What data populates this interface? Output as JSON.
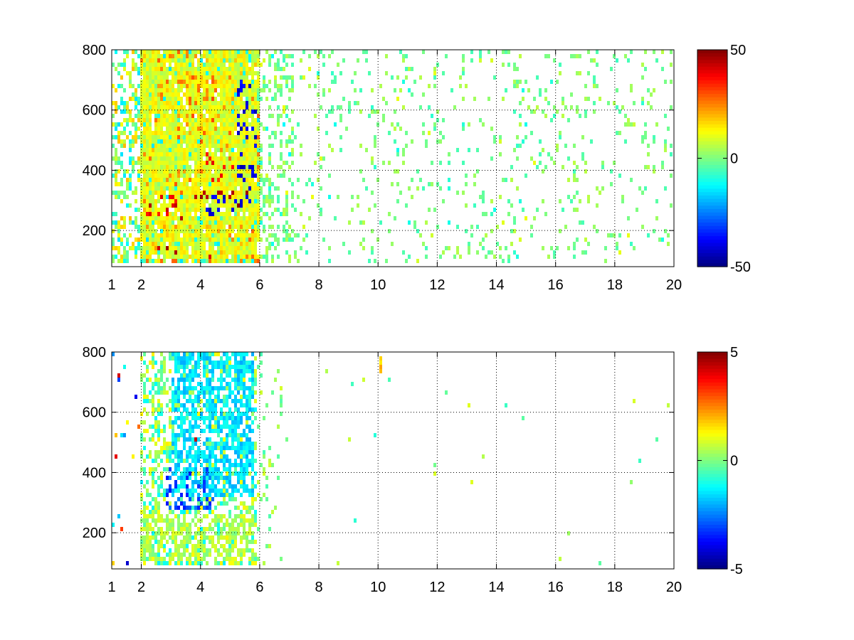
{
  "chart_data": [
    {
      "type": "heatmap",
      "title": "",
      "xlabel": "",
      "ylabel": "",
      "grid": true,
      "colormap": "jet",
      "xlim": [
        1,
        20
      ],
      "ylim": [
        80,
        800
      ],
      "xticks": [
        "1",
        "2",
        "4",
        "6",
        "8",
        "10",
        "12",
        "14",
        "16",
        "18",
        "20"
      ],
      "xtick_values": [
        1,
        2,
        4,
        6,
        8,
        10,
        12,
        14,
        16,
        18,
        20
      ],
      "yticks": [
        "200",
        "400",
        "600",
        "800"
      ],
      "ytick_values": [
        200,
        400,
        600,
        800
      ],
      "colorbar": {
        "min": -50,
        "max": 50,
        "ticks": [
          "50",
          "0",
          "-50"
        ],
        "tick_values": [
          50,
          0,
          -50
        ]
      },
      "features": [
        {
          "x": [
            2.2,
            3.5
          ],
          "y": [
            220,
            300
          ],
          "value": 40
        },
        {
          "x": [
            3.5,
            5.8
          ],
          "y": [
            260,
            320
          ],
          "value": 45
        },
        {
          "x": [
            4.2,
            5.8
          ],
          "y": [
            240,
            300
          ],
          "value": -40
        },
        {
          "x": [
            2.5,
            4.5
          ],
          "y": [
            100,
            130
          ],
          "value": 45
        },
        {
          "x": [
            3.2,
            4.2
          ],
          "y": [
            95,
            125
          ],
          "value": -45
        },
        {
          "x": [
            4.2,
            5.8
          ],
          "y": [
            350,
            450
          ],
          "value": 35
        },
        {
          "x": [
            5.2,
            5.9
          ],
          "y": [
            300,
            700
          ],
          "value": -40
        },
        {
          "x": [
            3.5,
            5.0
          ],
          "y": [
            500,
            700
          ],
          "value": 25
        },
        {
          "x": [
            2.0,
            6.0
          ],
          "y": [
            100,
            800
          ],
          "value": 10
        },
        {
          "x": [
            6.0,
            20.0
          ],
          "y": [
            80,
            800
          ],
          "value": 0
        }
      ]
    },
    {
      "type": "heatmap",
      "title": "",
      "xlabel": "",
      "ylabel": "",
      "grid": true,
      "colormap": "jet",
      "xlim": [
        1,
        20
      ],
      "ylim": [
        80,
        800
      ],
      "xticks": [
        "1",
        "2",
        "4",
        "6",
        "8",
        "10",
        "12",
        "14",
        "16",
        "18",
        "20"
      ],
      "xtick_values": [
        1,
        2,
        4,
        6,
        8,
        10,
        12,
        14,
        16,
        18,
        20
      ],
      "yticks": [
        "200",
        "400",
        "600",
        "800"
      ],
      "ytick_values": [
        200,
        400,
        600,
        800
      ],
      "colorbar": {
        "min": -5,
        "max": 5,
        "ticks": [
          "5",
          "0",
          "-5"
        ],
        "tick_values": [
          5,
          0,
          -5
        ]
      },
      "features": [
        {
          "x": [
            3.7,
            3.9
          ],
          "y": [
            440,
            520
          ],
          "value": 4.5
        },
        {
          "x": [
            2.8,
            4.5
          ],
          "y": [
            270,
            400
          ],
          "value": -3
        },
        {
          "x": [
            2.0,
            5.8
          ],
          "y": [
            90,
            250
          ],
          "value": 0.5
        },
        {
          "x": [
            3.0,
            5.8
          ],
          "y": [
            300,
            800
          ],
          "value": -1.5
        },
        {
          "x": [
            10.0,
            10.1
          ],
          "y": [
            720,
            800
          ],
          "value": 2
        }
      ]
    }
  ]
}
